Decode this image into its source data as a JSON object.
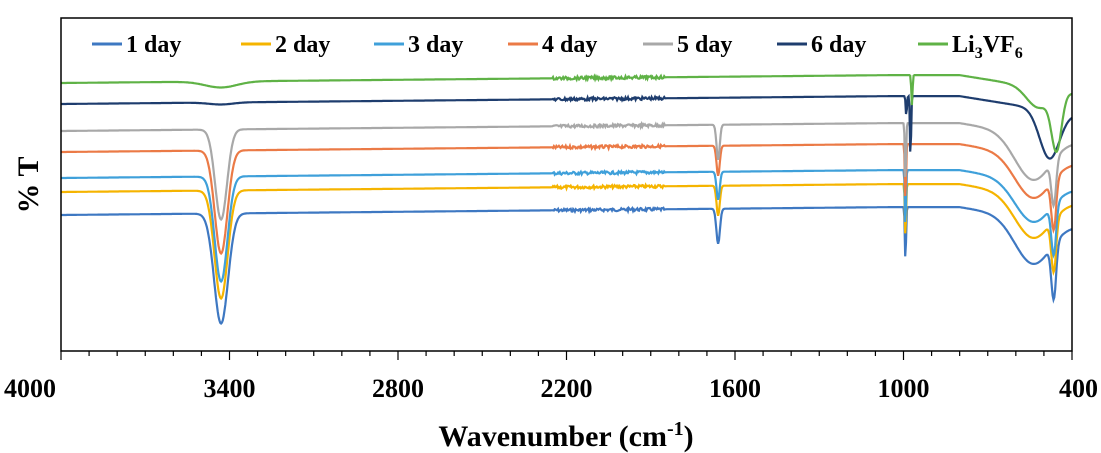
{
  "chart_data": {
    "type": "line",
    "xlabel": "Wavenumber (cm",
    "xlabel_sup": "-1",
    "xlabel_end": ")",
    "ylabel": "% T",
    "xlim": [
      4000,
      400
    ],
    "x_ticks": [
      "4000",
      "3400",
      "2800",
      "2200",
      "1600",
      "1000",
      "400"
    ],
    "legend_position": "top",
    "series": [
      {
        "name": "1 day",
        "color": "#3E78C2",
        "baseline": 215,
        "features": [
          [
            3430,
            110,
            35
          ],
          [
            1660,
            35,
            9
          ],
          [
            993,
            55,
            3
          ],
          [
            540,
            45,
            90
          ],
          [
            465,
            55,
            12
          ]
        ]
      },
      {
        "name": "2 day",
        "color": "#F5B400",
        "baseline": 192,
        "features": [
          [
            3430,
            108,
            33
          ],
          [
            1660,
            30,
            8
          ],
          [
            993,
            55,
            3
          ],
          [
            540,
            42,
            90
          ],
          [
            465,
            52,
            12
          ]
        ]
      },
      {
        "name": "3 day",
        "color": "#3FA0DA",
        "baseline": 178,
        "features": [
          [
            3430,
            105,
            32
          ],
          [
            1660,
            28,
            8
          ],
          [
            993,
            58,
            3
          ],
          [
            540,
            40,
            90
          ],
          [
            465,
            50,
            12
          ]
        ]
      },
      {
        "name": "4 day",
        "color": "#EB7A46",
        "baseline": 152,
        "features": [
          [
            3430,
            103,
            32
          ],
          [
            1660,
            30,
            8
          ],
          [
            993,
            58,
            3
          ],
          [
            540,
            42,
            90
          ],
          [
            465,
            50,
            12
          ]
        ]
      },
      {
        "name": "5 day",
        "color": "#A8A8A8",
        "baseline": 131,
        "features": [
          [
            3430,
            90,
            30
          ],
          [
            1660,
            35,
            8
          ],
          [
            993,
            60,
            3
          ],
          [
            540,
            45,
            90
          ],
          [
            465,
            45,
            12
          ]
        ]
      },
      {
        "name": "6 day",
        "color": "#1E3D6E",
        "baseline": 104,
        "features": [
          [
            3430,
            2,
            60
          ],
          [
            975,
            62,
            3
          ],
          [
            990,
            20,
            3
          ],
          [
            480,
            48,
            50
          ]
        ]
      },
      {
        "name": "Li3VF6",
        "name_parts": [
          "Li",
          "3",
          "VF",
          "6"
        ],
        "color": "#5FB246",
        "baseline": 83,
        "features": [
          [
            3430,
            6,
            80
          ],
          [
            970,
            30,
            3
          ],
          [
            455,
            55,
            25
          ],
          [
            520,
            20,
            60
          ]
        ]
      }
    ]
  }
}
